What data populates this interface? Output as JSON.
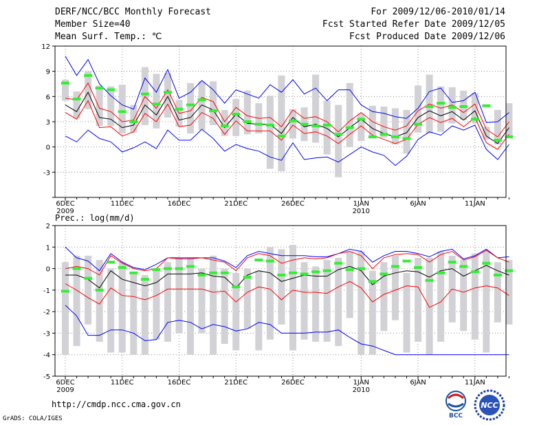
{
  "header": {
    "title": "DERF/NCC/BCC Monthly Forecast",
    "member_size": "Member Size=40",
    "variable": "Mean Surf. Temp.: ℃",
    "period": "For 2009/12/06-2010/01/14",
    "started": "Fcst Started Refer Date 2009/12/05",
    "produced": "Fcst Produced Date 2009/12/06"
  },
  "footer": {
    "url": "http://cmdp.ncc.cma.gov.cn",
    "credit": "GrADS: COLA/IGES"
  },
  "logos": {
    "bcc": "BCC",
    "ncc": "NCC"
  },
  "colors": {
    "box": "#d2d2d6",
    "mean": "#000000",
    "sd": "#ff0000",
    "extreme": "#0000ff",
    "ensmean": "#33ee33",
    "grid": "#888888"
  },
  "chart_data": [
    {
      "type": "box",
      "title": "Mean Surf. Temp.: ℃",
      "ylim": [
        -6,
        12
      ],
      "yticks": [
        -6,
        -3,
        0,
        3,
        6,
        9,
        12
      ],
      "ytick_labels": [
        "",
        "-3",
        "0",
        "3",
        "6",
        "9",
        "12"
      ],
      "x_start_day": 0,
      "x_end_day": 39,
      "date_ticks": [
        {
          "day": 0,
          "label": "6DEC",
          "sub": "2009"
        },
        {
          "day": 5,
          "label": "11DEC",
          "sub": ""
        },
        {
          "day": 10,
          "label": "16DEC",
          "sub": ""
        },
        {
          "day": 15,
          "label": "21DEC",
          "sub": ""
        },
        {
          "day": 20,
          "label": "26DEC",
          "sub": ""
        },
        {
          "day": 26,
          "label": "1JAN",
          "sub": "2010"
        },
        {
          "day": 31,
          "label": "6JAN",
          "sub": ""
        },
        {
          "day": 36,
          "label": "11JAN",
          "sub": ""
        }
      ],
      "series": {
        "box_low": [
          5.5,
          3.4,
          4.5,
          2.5,
          2.5,
          1.6,
          1.7,
          2.6,
          2.2,
          3.5,
          2.4,
          1.6,
          2.0,
          2.6,
          1.3,
          1.3,
          1.5,
          1.6,
          -2.6,
          -2.9,
          1.0,
          0.7,
          0.5,
          -0.9,
          -3.6,
          0.0,
          0.7,
          1.0,
          1.1,
          0.3,
          -0.8,
          1.7,
          1.6,
          1.8,
          2.8,
          3.2,
          2.8,
          0.9,
          0.3,
          1.3
        ],
        "box_high": [
          8.0,
          6.6,
          9.0,
          7.3,
          7.2,
          7.4,
          5.0,
          9.5,
          8.7,
          8.8,
          5.6,
          7.6,
          7.8,
          7.8,
          4.4,
          5.7,
          6.7,
          5.2,
          6.1,
          8.5,
          4.5,
          4.7,
          8.6,
          5.5,
          5.0,
          7.6,
          4.0,
          4.9,
          4.8,
          4.6,
          4.4,
          7.3,
          8.6,
          7.2,
          7.1,
          6.7,
          6.4,
          2.4,
          4.4,
          5.2
        ],
        "ens_mean": [
          7.6,
          5.7,
          8.5,
          7.0,
          6.8,
          4.2,
          3.0,
          6.3,
          5.1,
          6.5,
          4.5,
          5.0,
          5.6,
          4.3,
          2.5,
          3.9,
          3.0,
          2.7,
          2.6,
          1.3,
          3.1,
          2.7,
          2.5,
          2.6,
          1.5,
          2.3,
          3.3,
          1.2,
          1.5,
          1.2,
          1.0,
          2.7,
          4.8,
          5.2,
          4.7,
          4.8,
          3.3,
          4.9,
          0.8,
          1.2
        ],
        "mean": [
          5.0,
          4.2,
          6.5,
          3.5,
          3.3,
          2.3,
          2.6,
          5.0,
          3.8,
          6.0,
          3.2,
          3.5,
          5.0,
          4.4,
          2.3,
          3.9,
          2.8,
          2.7,
          2.7,
          1.6,
          3.5,
          2.4,
          2.7,
          2.2,
          1.2,
          2.3,
          3.3,
          2.2,
          1.6,
          1.2,
          1.7,
          3.5,
          4.3,
          3.7,
          4.2,
          3.2,
          4.3,
          1.3,
          0.4,
          2.3
        ],
        "sd_high": [
          5.8,
          5.6,
          7.6,
          4.6,
          4.2,
          3.0,
          3.2,
          6.0,
          4.6,
          6.8,
          4.0,
          4.3,
          5.9,
          5.4,
          3.0,
          4.7,
          3.7,
          3.4,
          3.5,
          2.4,
          4.4,
          3.4,
          3.6,
          3.0,
          1.8,
          3.1,
          4.1,
          3.0,
          2.4,
          2.0,
          2.5,
          4.3,
          5.1,
          4.6,
          5.0,
          4.1,
          5.1,
          2.1,
          1.2,
          3.0
        ],
        "sd_low": [
          4.1,
          3.3,
          5.5,
          2.3,
          2.4,
          1.3,
          1.8,
          4.0,
          3.0,
          5.1,
          2.4,
          2.6,
          4.1,
          3.4,
          1.5,
          3.1,
          1.9,
          1.9,
          1.9,
          0.8,
          2.6,
          1.6,
          1.8,
          1.3,
          0.4,
          1.5,
          2.5,
          1.4,
          0.9,
          0.4,
          0.9,
          2.7,
          3.5,
          2.9,
          3.4,
          2.4,
          3.5,
          0.5,
          -0.3,
          1.5
        ],
        "max": [
          10.8,
          8.5,
          10.4,
          7.5,
          6.1,
          5.0,
          4.5,
          8.2,
          6.5,
          9.2,
          5.8,
          6.5,
          7.9,
          6.8,
          5.2,
          6.8,
          6.3,
          5.8,
          7.4,
          6.5,
          8.0,
          6.3,
          7.0,
          5.5,
          6.8,
          6.8,
          5.0,
          4.2,
          4.0,
          3.6,
          3.4,
          4.6,
          6.6,
          7.0,
          5.3,
          5.5,
          6.5,
          2.9,
          3.0,
          4.1
        ],
        "min": [
          1.3,
          0.6,
          2.0,
          1.0,
          0.6,
          -0.6,
          -0.1,
          0.6,
          -0.2,
          2.0,
          0.8,
          0.8,
          2.1,
          1.0,
          -0.5,
          0.3,
          -0.2,
          -0.5,
          -1.2,
          -1.6,
          0.5,
          -1.5,
          -1.3,
          -1.2,
          -1.8,
          -0.9,
          0.0,
          -0.6,
          -1.0,
          -2.2,
          -1.1,
          0.9,
          1.8,
          1.4,
          2.5,
          2.0,
          2.6,
          -0.3,
          -1.5,
          0.3
        ]
      }
    },
    {
      "type": "box",
      "title": "Prec.: log(mm/d)",
      "ylim": [
        -5,
        2
      ],
      "yticks": [
        -5,
        -4,
        -3,
        -2,
        -1,
        0,
        1,
        2
      ],
      "ytick_labels": [
        "-5",
        "-4",
        "-3",
        "-2",
        "-1",
        "0",
        "1",
        "2"
      ],
      "x_start_day": 0,
      "x_end_day": 39,
      "date_ticks": [
        {
          "day": 0,
          "label": "6DEC",
          "sub": "2009"
        },
        {
          "day": 5,
          "label": "11DEC",
          "sub": ""
        },
        {
          "day": 10,
          "label": "16DEC",
          "sub": ""
        },
        {
          "day": 15,
          "label": "21DEC",
          "sub": ""
        },
        {
          "day": 20,
          "label": "26DEC",
          "sub": ""
        },
        {
          "day": 26,
          "label": "1JAN",
          "sub": "2010"
        },
        {
          "day": 31,
          "label": "6JAN",
          "sub": ""
        },
        {
          "day": 36,
          "label": "11JAN",
          "sub": ""
        }
      ],
      "series": {
        "box_low": [
          -4.0,
          -3.6,
          -2.6,
          -3.4,
          -3.9,
          -3.9,
          -4.0,
          -4.0,
          -3.3,
          -3.4,
          -3.0,
          -4.0,
          -3.0,
          -4.0,
          -3.5,
          -3.8,
          -2.8,
          -3.8,
          -3.3,
          -2.6,
          -3.8,
          -3.3,
          -3.4,
          -3.4,
          -3.6,
          -2.3,
          -4.0,
          -4.0,
          -2.9,
          -2.4,
          -3.9,
          -3.4,
          -4.0,
          -3.4,
          -2.5,
          -2.9,
          -3.3,
          -3.9,
          -2.5,
          -2.6
        ],
        "box_high": [
          0.3,
          0.6,
          0.6,
          0.4,
          0.0,
          0.3,
          -0.2,
          -0.3,
          -0.1,
          0.3,
          0.5,
          0.5,
          0.0,
          0.6,
          0.0,
          -0.2,
          0.0,
          -0.1,
          1.0,
          0.9,
          1.1,
          0.3,
          0.1,
          0.4,
          0.5,
          0.8,
          0.8,
          -0.1,
          0.3,
          0.6,
          -0.2,
          0.5,
          0.5,
          0.8,
          0.6,
          0.4,
          0.7,
          0.8,
          0.3,
          0.4
        ],
        "ens_mean": [
          -1.05,
          0.0,
          -0.45,
          -1.0,
          0.3,
          0.05,
          -0.2,
          -0.5,
          -0.05,
          0.0,
          0.0,
          0.1,
          -0.3,
          -0.2,
          -0.2,
          -0.85,
          -0.4,
          0.4,
          0.35,
          -0.3,
          -0.2,
          -0.25,
          -0.15,
          -0.1,
          0.25,
          -0.05,
          0.0,
          -0.6,
          -0.25,
          0.1,
          0.35,
          0.05,
          -0.55,
          -0.2,
          0.3,
          0.1,
          -0.15,
          0.25,
          -0.3,
          -0.1
        ],
        "mean": [
          -0.3,
          -0.3,
          -0.5,
          -0.9,
          -0.1,
          -0.5,
          -0.65,
          -0.8,
          -0.65,
          -0.25,
          -0.25,
          -0.25,
          -0.2,
          -0.35,
          -0.4,
          -0.9,
          -0.3,
          -0.1,
          -0.2,
          -0.6,
          -0.45,
          -0.3,
          -0.35,
          -0.35,
          -0.05,
          0.1,
          -0.1,
          -0.75,
          -0.35,
          -0.2,
          -0.1,
          -0.15,
          -0.4,
          -0.1,
          0.0,
          -0.35,
          -0.1,
          0.15,
          -0.1,
          -0.3
        ],
        "sd_high": [
          0.0,
          0.1,
          0.0,
          -0.3,
          0.6,
          0.25,
          0.0,
          -0.1,
          0.0,
          0.5,
          0.45,
          0.45,
          0.5,
          0.4,
          0.3,
          -0.1,
          0.5,
          0.7,
          0.6,
          0.25,
          0.4,
          0.5,
          0.45,
          0.5,
          0.7,
          0.8,
          0.6,
          0.0,
          0.5,
          0.65,
          0.7,
          0.65,
          0.3,
          0.65,
          0.8,
          0.4,
          0.55,
          0.85,
          0.5,
          0.3
        ],
        "sd_low": [
          -0.7,
          -1.0,
          -1.35,
          -1.65,
          -0.9,
          -1.25,
          -1.3,
          -1.45,
          -1.25,
          -0.95,
          -0.95,
          -0.95,
          -0.95,
          -1.1,
          -1.05,
          -1.55,
          -1.1,
          -0.85,
          -0.95,
          -1.45,
          -1.0,
          -1.1,
          -1.1,
          -1.15,
          -0.85,
          -0.6,
          -0.9,
          -1.55,
          -1.2,
          -1.0,
          -0.8,
          -0.85,
          -1.8,
          -1.55,
          -0.95,
          -1.1,
          -0.9,
          -0.8,
          -0.9,
          -1.25
        ],
        "max": [
          1.0,
          0.5,
          0.35,
          -0.1,
          0.7,
          0.3,
          0.05,
          -0.05,
          0.2,
          0.5,
          0.5,
          0.5,
          0.5,
          0.5,
          0.35,
          0.05,
          0.6,
          0.8,
          0.7,
          0.6,
          0.6,
          0.6,
          0.55,
          0.55,
          0.7,
          0.9,
          0.8,
          0.3,
          0.6,
          0.8,
          0.8,
          0.7,
          0.55,
          0.8,
          0.9,
          0.45,
          0.6,
          0.9,
          0.5,
          0.55
        ],
        "min": [
          -1.7,
          -2.2,
          -3.1,
          -3.1,
          -2.85,
          -2.85,
          -3.0,
          -3.35,
          -3.3,
          -2.5,
          -2.4,
          -2.5,
          -2.8,
          -2.6,
          -2.7,
          -2.9,
          -2.8,
          -2.5,
          -2.6,
          -3.0,
          -3.0,
          -3.0,
          -2.95,
          -2.95,
          -2.85,
          -3.2,
          -3.5,
          -3.6,
          -3.8,
          -4.0,
          -4.0,
          -4.0,
          -4.0,
          -4.0,
          -4.0,
          -4.0,
          -4.0,
          -4.0,
          -4.0,
          -4.0
        ]
      }
    }
  ]
}
